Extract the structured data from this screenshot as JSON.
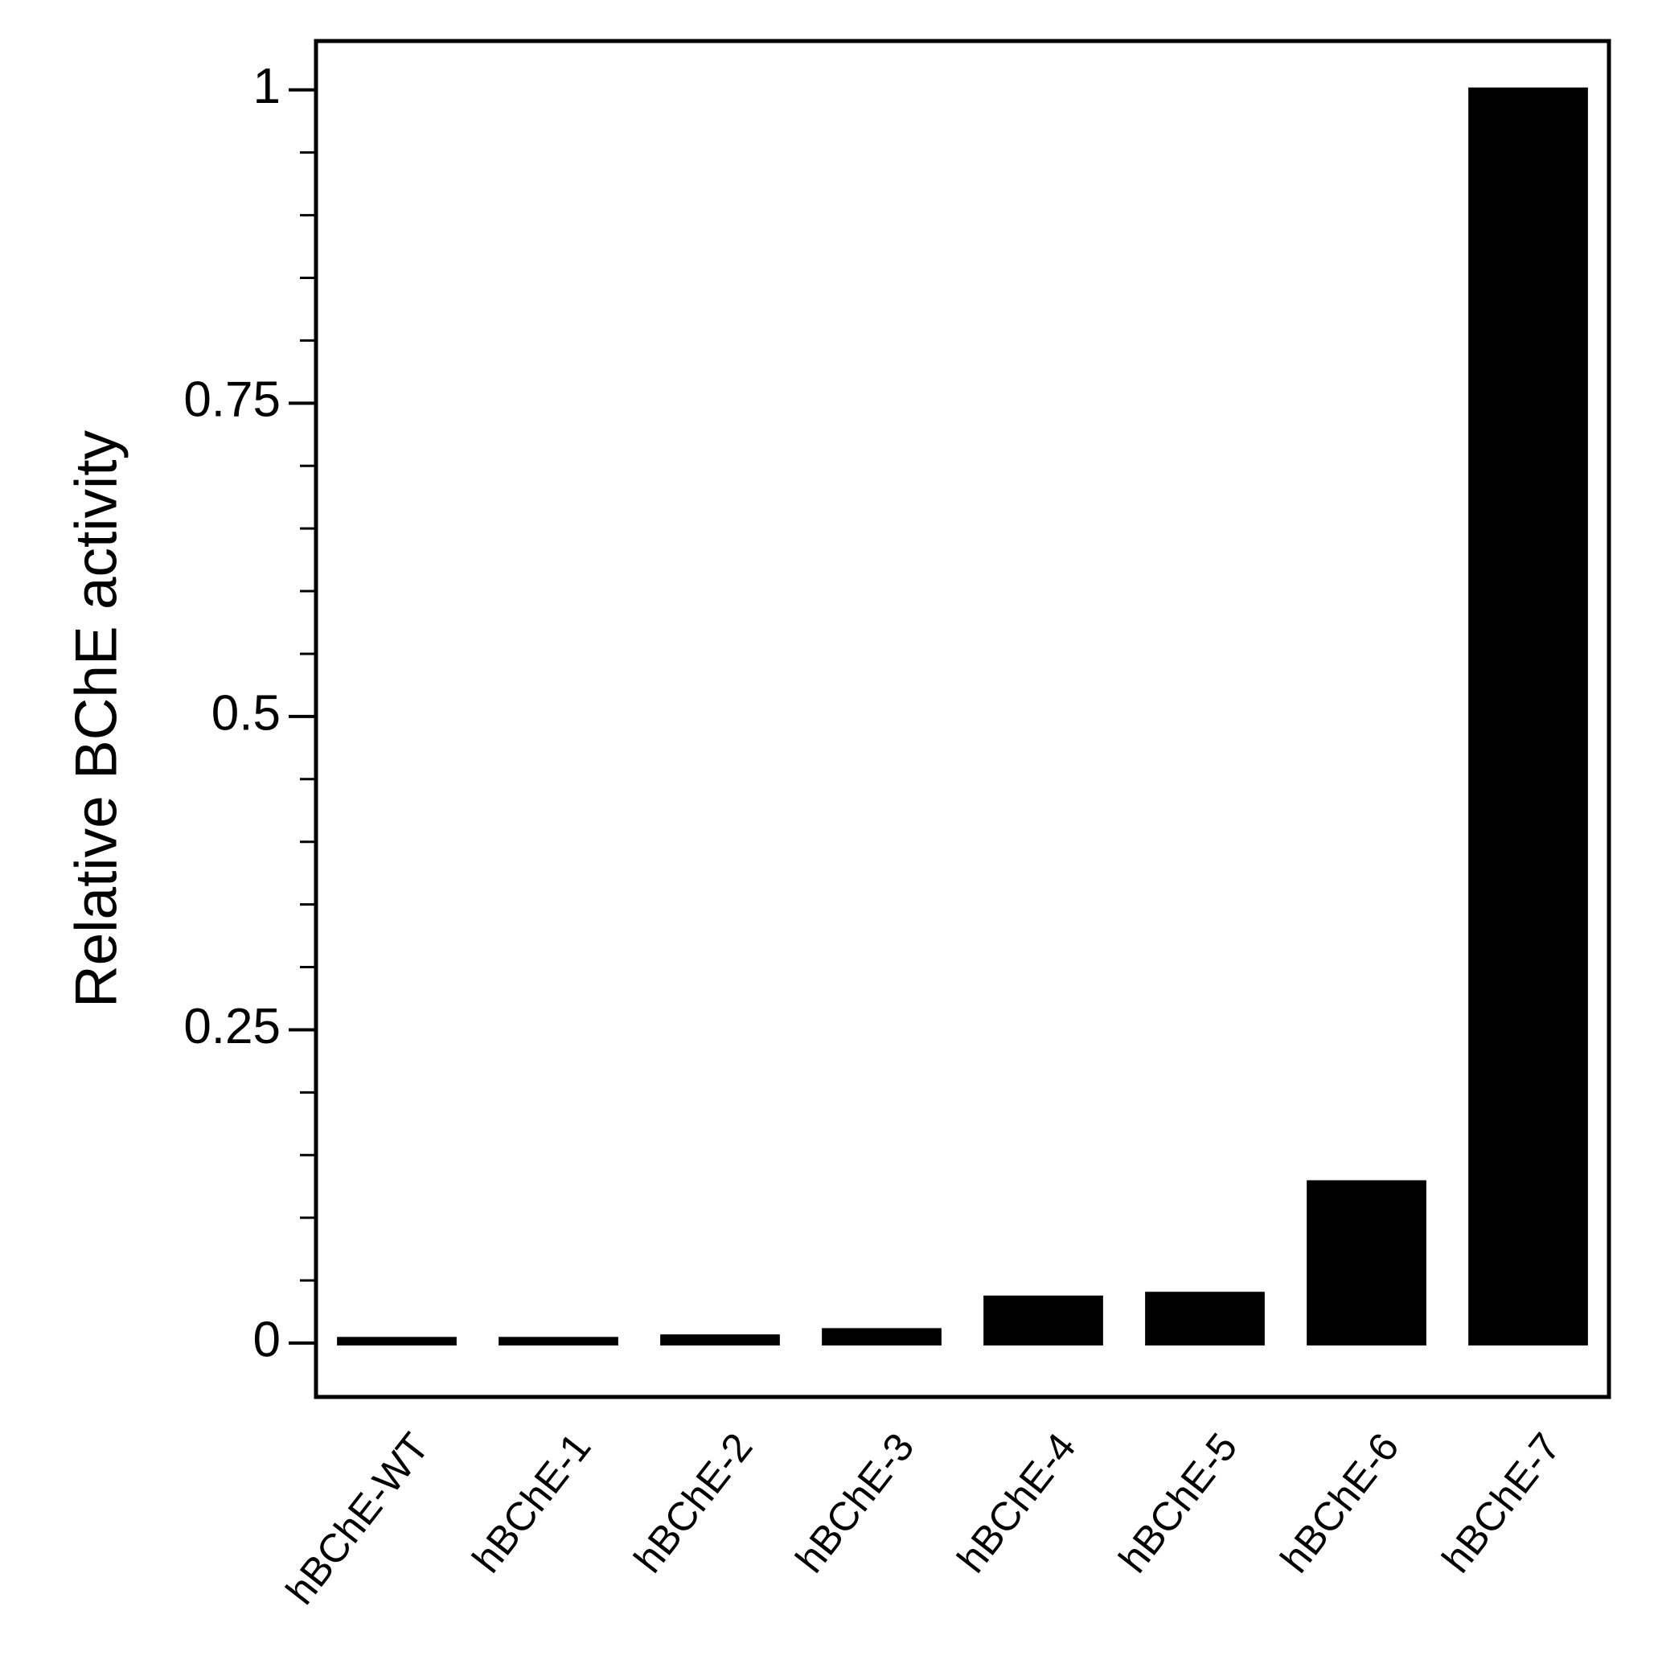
{
  "chart_data": {
    "type": "bar",
    "y_label": "Relative BChE activity",
    "categories": [
      "hBChE-WT",
      "hBChE-1",
      "hBChE-2",
      "hBChE-3",
      "hBChE-4",
      "hBChE-5",
      "hBChE-6",
      "hBChE-7"
    ],
    "values": [
      0.003,
      0.003,
      0.005,
      0.01,
      0.036,
      0.039,
      0.128,
      1.0
    ],
    "color": "#000000",
    "ylim": [
      -0.043,
      1.039
    ],
    "yticks": [
      0,
      0.25,
      0.5,
      0.75,
      1
    ],
    "minor_yticks": [
      0.05,
      0.1,
      0.15,
      0.2,
      0.3,
      0.35,
      0.4,
      0.45,
      0.55,
      0.6,
      0.65,
      0.7,
      0.8,
      0.85,
      0.9,
      0.95
    ],
    "grid": false
  }
}
